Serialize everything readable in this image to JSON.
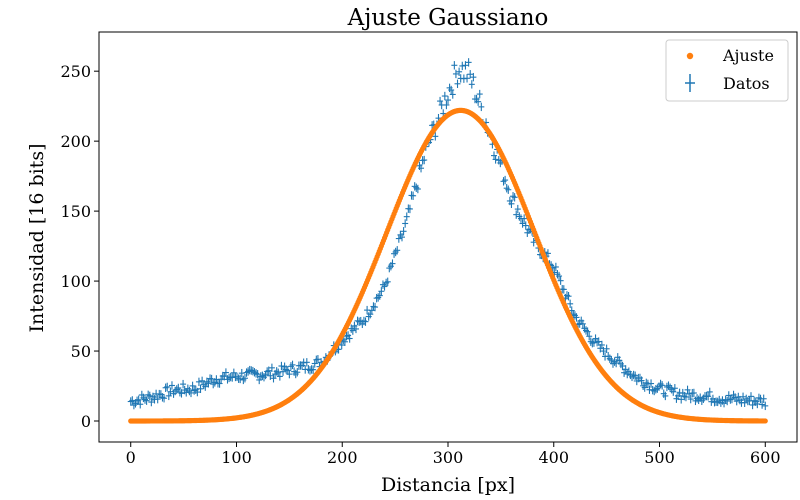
{
  "chart_data": {
    "type": "scatter",
    "title": "Ajuste Gaussiano",
    "xlabel": "Distancia [px]",
    "ylabel": "Intensidad [16 bits]",
    "xlim": [
      -30,
      630
    ],
    "ylim": [
      -15,
      278
    ],
    "xticks": [
      0,
      100,
      200,
      300,
      400,
      500,
      600
    ],
    "yticks": [
      0,
      50,
      100,
      150,
      200,
      250
    ],
    "grid": false,
    "legend_position": "top-right",
    "legend": [
      "Ajuste",
      "Datos"
    ],
    "series": [
      {
        "name": "Ajuste",
        "kind": "marker",
        "color": "#ff7f0e",
        "model": "gaussian",
        "params": {
          "amplitude": 222,
          "center": 312,
          "sigma": 70
        },
        "x_range": [
          0,
          600
        ],
        "points": 600
      },
      {
        "name": "Datos",
        "kind": "errorbar",
        "color": "#1f77b4",
        "error": 3,
        "x": [
          0,
          20,
          40,
          60,
          80,
          100,
          120,
          140,
          160,
          180,
          200,
          220,
          240,
          260,
          280,
          300,
          310,
          320,
          340,
          360,
          380,
          400,
          420,
          440,
          460,
          480,
          500,
          520,
          540,
          560,
          580,
          600
        ],
        "y": [
          14,
          17,
          22,
          23,
          30,
          32,
          33,
          35,
          38,
          42,
          58,
          72,
          96,
          140,
          195,
          235,
          252,
          248,
          205,
          160,
          130,
          110,
          75,
          55,
          42,
          30,
          23,
          19,
          18,
          16,
          15,
          14
        ]
      }
    ]
  }
}
